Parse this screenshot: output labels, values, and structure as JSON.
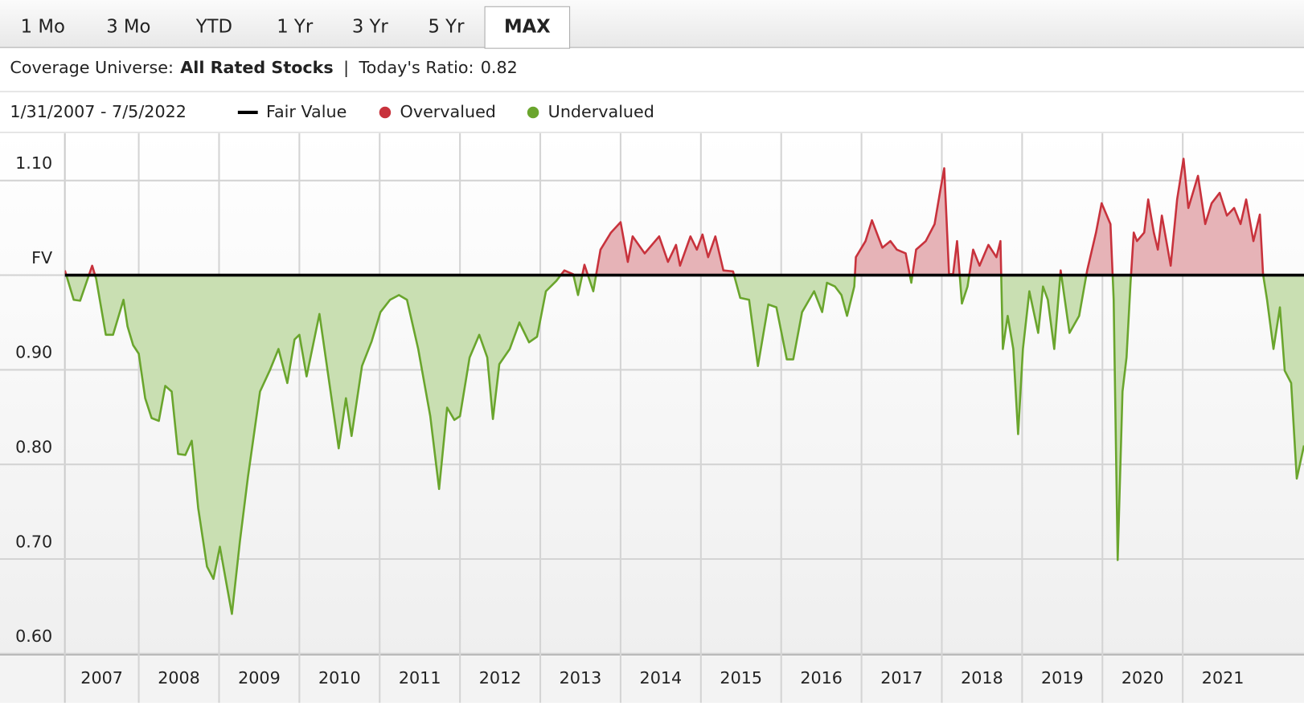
{
  "tabs": [
    "1 Mo",
    "3 Mo",
    "YTD",
    "1 Yr",
    "3 Yr",
    "5 Yr",
    "MAX"
  ],
  "active_tab": "MAX",
  "summary": {
    "universe_label": "Coverage Universe:",
    "universe": "All Rated Stocks",
    "separator": "|",
    "ratio_label": "Today's Ratio:",
    "ratio": 0.82
  },
  "chart_data": {
    "type": "line",
    "date_range": "1/31/2007 - 7/5/2022",
    "fair_value": {
      "name": "Fair Value",
      "value": 1,
      "color": "#000000"
    },
    "over": {
      "name": "Overvalued",
      "color": "#c8323c",
      "fill": "#e6b3b7"
    },
    "under": {
      "name": "Undervalued",
      "color": "#6aa52d",
      "fill": "#c9dfb2"
    },
    "x": [
      2007.08,
      2007.19,
      2007.27,
      2007.42,
      2007.47,
      2007.59,
      2007.68,
      2007.81,
      2007.86,
      2007.93,
      2008.0,
      2008.08,
      2008.16,
      2008.25,
      2008.33,
      2008.41,
      2008.49,
      2008.58,
      2008.66,
      2008.74,
      2008.85,
      2008.93,
      2009.01,
      2009.09,
      2009.16,
      2009.26,
      2009.36,
      2009.51,
      2009.63,
      2009.74,
      2009.85,
      2009.94,
      2010.0,
      2010.09,
      2010.25,
      2010.38,
      2010.49,
      2010.58,
      2010.65,
      2010.78,
      2010.9,
      2011.01,
      2011.13,
      2011.24,
      2011.34,
      2011.48,
      2011.63,
      2011.74,
      2011.84,
      2011.93,
      2012.0,
      2012.12,
      2012.24,
      2012.34,
      2012.41,
      2012.49,
      2012.62,
      2012.74,
      2012.86,
      2012.96,
      2013.07,
      2013.2,
      2013.3,
      2013.41,
      2013.47,
      2013.55,
      2013.66,
      2013.75,
      2013.88,
      2014.0,
      2014.09,
      2014.15,
      2014.3,
      2014.48,
      2014.59,
      2014.69,
      2014.74,
      2014.87,
      2014.95,
      2015.02,
      2015.09,
      2015.18,
      2015.28,
      2015.4,
      2015.49,
      2015.6,
      2015.71,
      2015.84,
      2015.94,
      2016.07,
      2016.15,
      2016.26,
      2016.41,
      2016.51,
      2016.57,
      2016.67,
      2016.75,
      2016.82,
      2016.91,
      2016.93,
      2017.05,
      2017.13,
      2017.26,
      2017.36,
      2017.44,
      2017.55,
      2017.62,
      2017.68,
      2017.8,
      2017.91,
      2017.98,
      2018.03,
      2018.09,
      2018.14,
      2018.19,
      2018.25,
      2018.32,
      2018.39,
      2018.47,
      2018.58,
      2018.68,
      2018.73,
      2018.76,
      2018.82,
      2018.89,
      2018.95,
      2019.01,
      2019.09,
      2019.2,
      2019.26,
      2019.32,
      2019.4,
      2019.48,
      2019.59,
      2019.71,
      2019.81,
      2019.92,
      2019.99,
      2020.1,
      2020.14,
      2020.19,
      2020.25,
      2020.3,
      2020.35,
      2020.39,
      2020.43,
      2020.52,
      2020.57,
      2020.64,
      2020.69,
      2020.74,
      2020.85,
      2020.93,
      2021.01,
      2021.07,
      2021.19,
      2021.28,
      2021.36,
      2021.46,
      2021.55,
      2021.64,
      2021.72,
      2021.79,
      2021.88,
      2021.96,
      2022.0,
      2022.05,
      2022.13,
      2022.21,
      2022.27,
      2022.35,
      2022.42,
      2022.51
    ],
    "values": [
      1.005,
      0.974,
      0.973,
      1.01,
      0.996,
      0.937,
      0.937,
      0.974,
      0.946,
      0.926,
      0.917,
      0.87,
      0.849,
      0.846,
      0.883,
      0.877,
      0.811,
      0.81,
      0.825,
      0.754,
      0.692,
      0.679,
      0.713,
      0.675,
      0.642,
      0.719,
      0.787,
      0.877,
      0.899,
      0.922,
      0.886,
      0.932,
      0.937,
      0.893,
      0.959,
      0.882,
      0.817,
      0.87,
      0.83,
      0.904,
      0.93,
      0.961,
      0.974,
      0.979,
      0.974,
      0.922,
      0.851,
      0.774,
      0.86,
      0.847,
      0.851,
      0.913,
      0.937,
      0.913,
      0.848,
      0.906,
      0.922,
      0.95,
      0.929,
      0.935,
      0.983,
      0.994,
      1.005,
      1.001,
      0.979,
      1.011,
      0.983,
      1.027,
      1.045,
      1.056,
      1.014,
      1.041,
      1.023,
      1.041,
      1.014,
      1.032,
      1.01,
      1.041,
      1.027,
      1.043,
      1.019,
      1.041,
      1.005,
      1.004,
      0.976,
      0.974,
      0.904,
      0.969,
      0.966,
      0.911,
      0.911,
      0.961,
      0.983,
      0.961,
      0.992,
      0.988,
      0.979,
      0.957,
      0.988,
      1.019,
      1.036,
      1.058,
      1.029,
      1.036,
      1.027,
      1.023,
      0.992,
      1.027,
      1.036,
      1.054,
      1.089,
      1.113,
      1.001,
      1.001,
      1.036,
      0.97,
      0.988,
      1.027,
      1.01,
      1.032,
      1.019,
      1.036,
      0.922,
      0.957,
      0.922,
      0.832,
      0.922,
      0.983,
      0.939,
      0.988,
      0.974,
      0.922,
      1.005,
      0.939,
      0.957,
      1.005,
      1.045,
      1.076,
      1.054,
      0.974,
      0.699,
      0.877,
      0.913,
      0.992,
      1.045,
      1.036,
      1.045,
      1.08,
      1.045,
      1.027,
      1.063,
      1.01,
      1.08,
      1.123,
      1.071,
      1.105,
      1.054,
      1.076,
      1.087,
      1.063,
      1.071,
      1.054,
      1.08,
      1.036,
      1.064,
      1.001,
      0.974,
      0.922,
      0.966,
      0.899,
      0.886,
      0.785,
      0.82
    ],
    "xlim": [
      2007.08,
      2022.51
    ],
    "xticks": [
      2007,
      2008,
      2009,
      2010,
      2011,
      2012,
      2013,
      2014,
      2015,
      2016,
      2017,
      2018,
      2019,
      2020,
      2021
    ],
    "ylim": [
      0.6,
      1.15
    ],
    "yticks": [
      {
        "value": 0.6,
        "label": "0.60"
      },
      {
        "value": 0.7,
        "label": "0.70"
      },
      {
        "value": 0.8,
        "label": "0.80"
      },
      {
        "value": 0.9,
        "label": "0.90"
      },
      {
        "value": 1,
        "label": "FV"
      },
      {
        "value": 1.1,
        "label": "1.10"
      }
    ],
    "grid": true
  }
}
